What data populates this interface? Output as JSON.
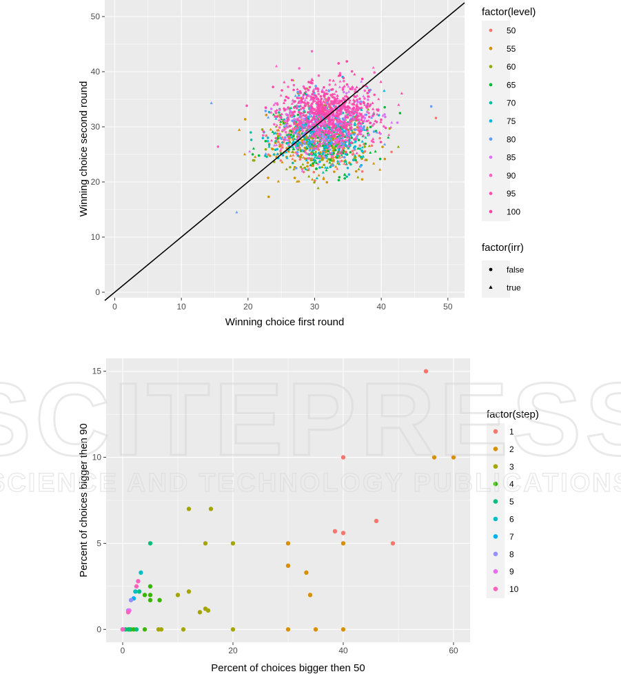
{
  "watermark": {
    "big": "SCITEPRESS",
    "small": "SCIENCE AND TECHNOLOGY PUBLICATIONS"
  },
  "chart_data": [
    {
      "type": "scatter",
      "title": "",
      "xlabel": "Winning choice first round",
      "ylabel": "Winning choice second round",
      "xlim": [
        -1.5,
        52.5
      ],
      "ylim": [
        -1,
        53
      ],
      "xticks": [
        0,
        10,
        20,
        30,
        40,
        50
      ],
      "yticks": [
        0,
        10,
        20,
        30,
        40,
        50
      ],
      "grid": true,
      "reference_line": {
        "slope": 1,
        "intercept": 0,
        "color": "#000000"
      },
      "legend_position": "right",
      "color_legend": {
        "title": "factor(level)",
        "levels": [
          "50",
          "55",
          "60",
          "65",
          "70",
          "75",
          "80",
          "85",
          "90",
          "95",
          "100"
        ],
        "colors": [
          "#F8766D",
          "#D39200",
          "#93AA00",
          "#00BA38",
          "#00C19F",
          "#00B9E3",
          "#619CFF",
          "#DB72FB",
          "#FF61C3",
          "#FF4FB0",
          "#FF47A8"
        ]
      },
      "shape_legend": {
        "title": "factor(irr)",
        "levels": [
          "false",
          "true"
        ],
        "shapes": [
          "circle",
          "triangle"
        ]
      },
      "series": [
        {
          "name": "50",
          "center": [
            31,
            27.5
          ]
        },
        {
          "name": "55",
          "center": [
            30.5,
            27
          ]
        },
        {
          "name": "60",
          "center": [
            30.5,
            27.5
          ]
        },
        {
          "name": "65",
          "center": [
            31,
            28
          ]
        },
        {
          "name": "70",
          "center": [
            31,
            28.5
          ]
        },
        {
          "name": "75",
          "center": [
            31,
            29
          ]
        },
        {
          "name": "80",
          "center": [
            31.5,
            30
          ]
        },
        {
          "name": "85",
          "center": [
            31.5,
            31
          ]
        },
        {
          "name": "90",
          "center": [
            32,
            32
          ]
        },
        {
          "name": "95",
          "center": [
            32,
            32.5
          ]
        },
        {
          "name": "100",
          "center": [
            32,
            32.5
          ]
        }
      ],
      "spread_sd": [
        4,
        3.3
      ],
      "outliers": [
        {
          "x": 18.3,
          "y": 14.5,
          "level": "80",
          "shape": "triangle"
        },
        {
          "x": 47.5,
          "y": 33.7,
          "level": "80",
          "shape": "circle"
        },
        {
          "x": 48.2,
          "y": 31.6,
          "level": "50",
          "shape": "circle"
        },
        {
          "x": 14.5,
          "y": 34.3,
          "level": "80",
          "shape": "triangle"
        },
        {
          "x": 23.1,
          "y": 17.3,
          "level": "55",
          "shape": "circle"
        },
        {
          "x": 29.6,
          "y": 43.7,
          "level": "90",
          "shape": "circle"
        },
        {
          "x": 20.7,
          "y": 25,
          "level": "65",
          "shape": "circle"
        },
        {
          "x": 15.5,
          "y": 26.4,
          "level": "90",
          "shape": "circle"
        }
      ]
    },
    {
      "type": "scatter",
      "title": "",
      "xlabel": "Percent of choices bigger then 50",
      "ylabel": "Percent of choices bigger then 90",
      "xlim": [
        -3,
        63
      ],
      "ylim": [
        -0.75,
        15.75
      ],
      "xticks": [
        0,
        20,
        40,
        60
      ],
      "yticks": [
        0,
        5,
        10,
        15
      ],
      "grid": true,
      "legend_position": "right",
      "legend_title": "factor(step)",
      "series": [
        {
          "name": "1",
          "color": "#F8766D",
          "points": [
            [
              55,
              15
            ],
            [
              40,
              10
            ],
            [
              46,
              6.3
            ],
            [
              38.5,
              5.7
            ],
            [
              40,
              5.6
            ],
            [
              49,
              5
            ]
          ]
        },
        {
          "name": "2",
          "color": "#D89000",
          "points": [
            [
              56.5,
              10
            ],
            [
              60,
              10
            ],
            [
              30,
              5
            ],
            [
              40,
              5
            ],
            [
              30,
              3.7
            ],
            [
              33.3,
              3.3
            ],
            [
              34,
              2
            ],
            [
              30,
              0
            ],
            [
              35,
              0
            ],
            [
              40,
              0
            ]
          ]
        },
        {
          "name": "3",
          "color": "#A3A500",
          "points": [
            [
              12,
              7
            ],
            [
              16,
              7
            ],
            [
              15,
              5
            ],
            [
              20,
              5
            ],
            [
              12,
              2.2
            ],
            [
              10,
              2
            ],
            [
              15,
              1.2
            ],
            [
              15.5,
              1.1
            ],
            [
              14,
              1
            ],
            [
              6.5,
              0
            ],
            [
              7,
              0
            ],
            [
              11,
              0
            ],
            [
              20,
              0
            ]
          ]
        },
        {
          "name": "4",
          "color": "#39B600",
          "points": [
            [
              5,
              2.5
            ],
            [
              4,
              2
            ],
            [
              5,
              2
            ],
            [
              5,
              1.7
            ],
            [
              6.7,
              1.7
            ],
            [
              0,
              0
            ],
            [
              1,
              0
            ],
            [
              1.5,
              0
            ],
            [
              2,
              0
            ],
            [
              4,
              0
            ]
          ]
        },
        {
          "name": "5",
          "color": "#00BF7D",
          "points": [
            [
              5,
              5
            ],
            [
              3,
              2.2
            ],
            [
              0.5,
              0
            ],
            [
              1.2,
              0
            ],
            [
              2.5,
              0
            ]
          ]
        },
        {
          "name": "6",
          "color": "#00BFC4",
          "points": [
            [
              3.3,
              3.3
            ],
            [
              2.3,
              2.2
            ],
            [
              0,
              0
            ]
          ]
        },
        {
          "name": "7",
          "color": "#00B0F6",
          "points": [
            [
              2,
              1.8
            ],
            [
              0,
              0
            ]
          ]
        },
        {
          "name": "8",
          "color": "#9590FF",
          "points": [
            [
              1.5,
              1.7
            ],
            [
              1,
              1.1
            ],
            [
              0,
              0
            ]
          ]
        },
        {
          "name": "9",
          "color": "#E76BF3",
          "points": [
            [
              1.2,
              1.1
            ],
            [
              0,
              0
            ]
          ]
        },
        {
          "name": "10",
          "color": "#FF62BC",
          "points": [
            [
              2.8,
              2.8
            ],
            [
              2.5,
              2.5
            ],
            [
              1,
              1
            ],
            [
              0,
              0
            ]
          ]
        }
      ]
    }
  ]
}
